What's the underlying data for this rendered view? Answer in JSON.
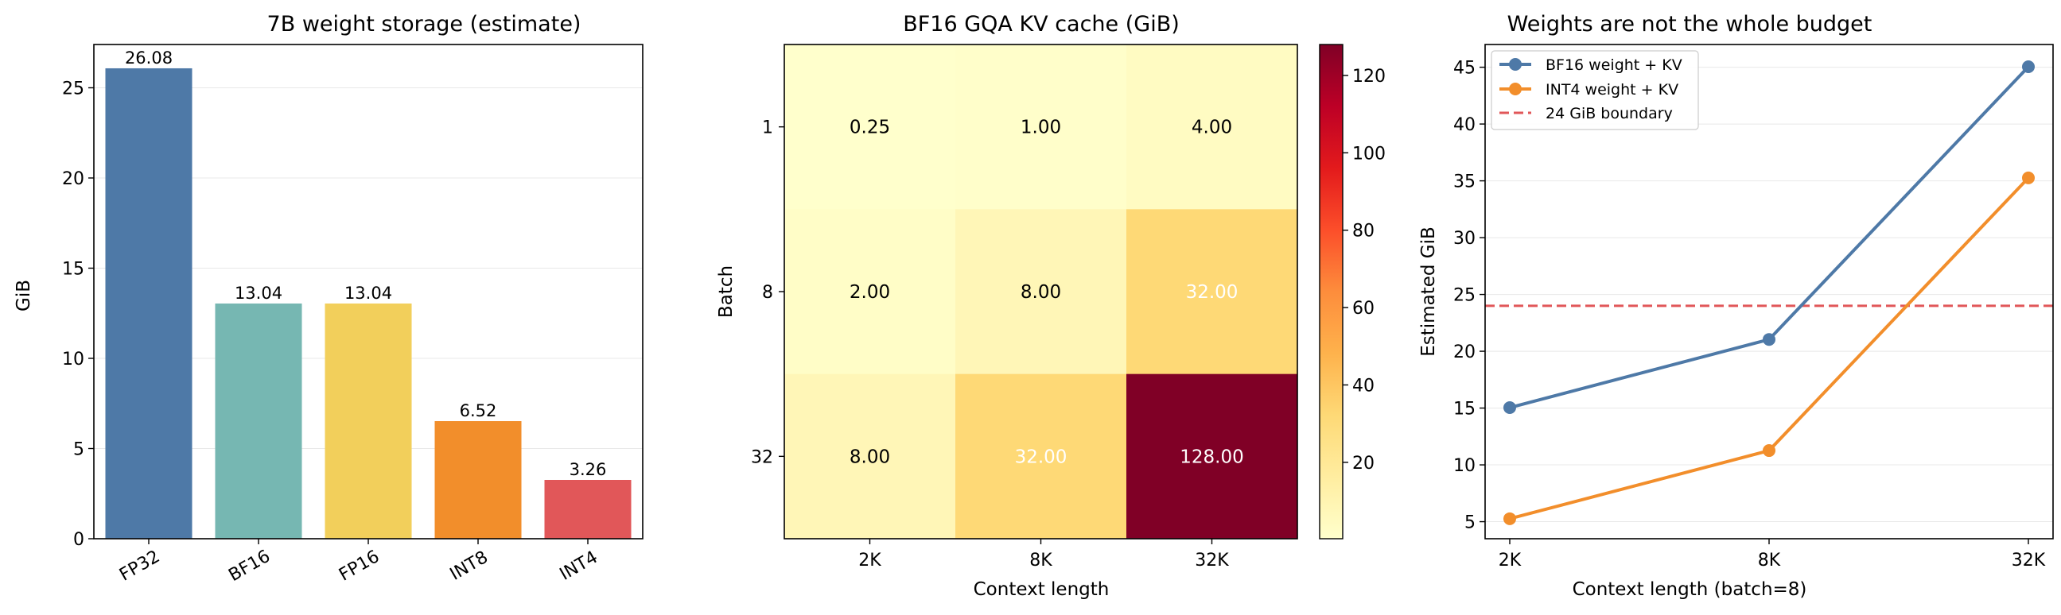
{
  "chart_data": [
    {
      "type": "bar",
      "title": "7B weight storage (estimate)",
      "xlabel": "",
      "ylabel": "GiB",
      "categories": [
        "FP32",
        "BF16",
        "FP16",
        "INT8",
        "INT4"
      ],
      "values": [
        26.08,
        13.04,
        13.04,
        6.52,
        3.26
      ],
      "value_labels": [
        "26.08",
        "13.04",
        "13.04",
        "6.52",
        "3.26"
      ],
      "colors": [
        "#4e79a7",
        "#76b7b2",
        "#f2cf5b",
        "#f28e2b",
        "#e15759"
      ],
      "ylim": [
        0,
        27.4
      ],
      "yticks": [
        0,
        5,
        10,
        15,
        20,
        25
      ],
      "grid": "y"
    },
    {
      "type": "heatmap",
      "title": "BF16 GQA KV cache (GiB)",
      "xlabel": "Context length",
      "ylabel": "Batch",
      "x": [
        "2K",
        "8K",
        "32K"
      ],
      "y": [
        "1",
        "8",
        "32"
      ],
      "values": [
        [
          0.25,
          1.0,
          4.0
        ],
        [
          2.0,
          8.0,
          32.0
        ],
        [
          8.0,
          32.0,
          128.0
        ]
      ],
      "cell_labels": [
        [
          "0.25",
          "1.00",
          "4.00"
        ],
        [
          "2.00",
          "8.00",
          "32.00"
        ],
        [
          "8.00",
          "32.00",
          "128.00"
        ]
      ],
      "colormap": "YlOrRd",
      "colorbar_range": [
        0.25,
        128
      ],
      "colorbar_ticks": [
        20,
        40,
        60,
        80,
        100,
        120
      ]
    },
    {
      "type": "line",
      "title": "Weights are not the whole budget",
      "xlabel": "Context length (batch=8)",
      "ylabel": "Estimated GiB",
      "x": [
        "2K",
        "8K",
        "32K"
      ],
      "series": [
        {
          "name": "BF16 weight + KV",
          "values": [
            15.04,
            21.04,
            45.04
          ],
          "color": "#4e79a7"
        },
        {
          "name": "INT4 weight + KV",
          "values": [
            5.26,
            11.26,
            35.26
          ],
          "color": "#f28e2b"
        }
      ],
      "hline": {
        "name": "24 GiB boundary",
        "value": 24,
        "color": "#e15759",
        "style": "dashed"
      },
      "ylim": [
        3.5,
        47
      ],
      "yticks": [
        5,
        10,
        15,
        20,
        25,
        30,
        35,
        40,
        45
      ],
      "legend": "top-left",
      "grid": "y"
    }
  ]
}
